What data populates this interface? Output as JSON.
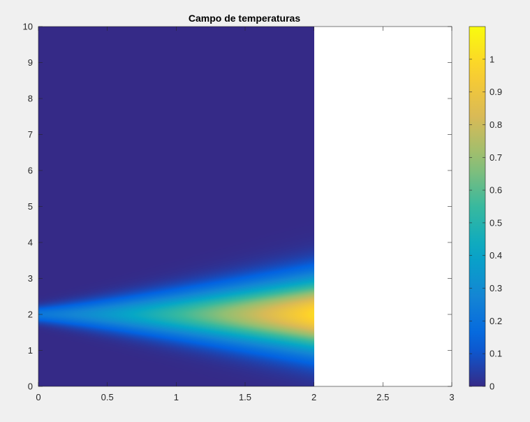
{
  "chart_data": {
    "type": "heatmap",
    "title": "Campo de temperaturas",
    "xlabel": "",
    "ylabel": "",
    "xlim": [
      0,
      3
    ],
    "ylim": [
      0,
      10
    ],
    "x_ticks": [
      "0",
      "0.5",
      "1",
      "1.5",
      "2",
      "2.5",
      "3"
    ],
    "y_ticks": [
      "0",
      "1",
      "2",
      "3",
      "4",
      "5",
      "6",
      "7",
      "8",
      "9",
      "10"
    ],
    "data_extent": {
      "x": [
        0,
        2
      ],
      "y": [
        0,
        10
      ]
    },
    "field": {
      "description_of_values": "temperature field, peak at x=2, y=2",
      "peak_value": 1.0,
      "peak_location": {
        "x": 2,
        "y": 2
      },
      "min_value": 0.0
    },
    "colorbar": {
      "limits": [
        0,
        1.1
      ],
      "ticks": [
        "0",
        "0.1",
        "0.2",
        "0.3",
        "0.4",
        "0.5",
        "0.6",
        "0.7",
        "0.8",
        "0.9",
        "1"
      ],
      "colormap": "parula",
      "colors": [
        "#352a87",
        "#0363e1",
        "#1485d4",
        "#06a7c6",
        "#38b99e",
        "#92bf73",
        "#d9ba56",
        "#fcce2e",
        "#f9fb0e"
      ]
    },
    "background_color": "#f0f0f0",
    "grid": false,
    "legend": "none"
  }
}
